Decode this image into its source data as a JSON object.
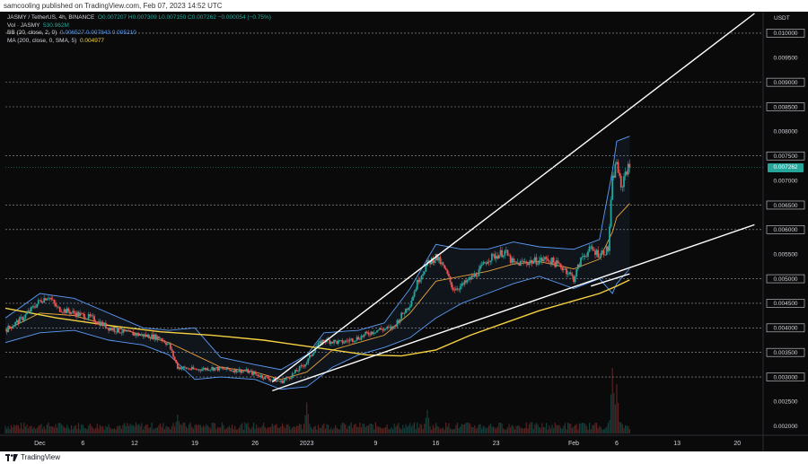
{
  "header": {
    "published": "samcooling published on TradingView.com, Feb 07, 2023 14:52 UTC"
  },
  "legend": {
    "symbol": "JASMY / TetherUS, 4h, BINANCE",
    "ohlc": "O0.007207 H0.007309 L0.007150 C0.007262 −0.000054 (−0.75%)",
    "vol_label": "Vol · JASMY",
    "vol_value": "530.962M",
    "bb_label": "BB (20, close, 2, 0)",
    "bb_values": "0.006527  0.007843  0.005210",
    "ma_label": "MA (200, close, 0, SMA, 5)",
    "ma_value": "0.004977"
  },
  "footer": {
    "brand": "TradingView"
  },
  "colors": {
    "up": "#26a69a",
    "down": "#ef5350",
    "bb": "#5b9cf6",
    "basis": "#e8a23c",
    "ma": "#f5d142",
    "trend": "#ffffff"
  },
  "chart_data": {
    "type": "candlestick",
    "currency": "USDT",
    "last_price": "0.007262",
    "ylim": [
      0.00185,
      0.0104
    ],
    "y_ticks": [
      "0.010000",
      "0.009500",
      "0.009000",
      "0.008500",
      "0.008000",
      "0.007500",
      "0.007000",
      "0.006500",
      "0.006000",
      "0.005500",
      "0.005000",
      "0.004500",
      "0.004000",
      "0.003500",
      "0.003000",
      "0.002500",
      "0.002000"
    ],
    "dashed_levels": [
      0.01,
      0.009,
      0.0085,
      0.0075,
      0.0065,
      0.006,
      0.005,
      0.0045,
      0.004,
      0.0035,
      0.003
    ],
    "x_ticks": [
      {
        "label": "Dec",
        "t": "2022-12-01"
      },
      {
        "label": "6",
        "t": "2022-12-06"
      },
      {
        "label": "12",
        "t": "2022-12-12"
      },
      {
        "label": "19",
        "t": "2022-12-19"
      },
      {
        "label": "26",
        "t": "2022-12-26"
      },
      {
        "label": "2023",
        "t": "2023-01-01"
      },
      {
        "label": "9",
        "t": "2023-01-09"
      },
      {
        "label": "16",
        "t": "2023-01-16"
      },
      {
        "label": "23",
        "t": "2023-01-23"
      },
      {
        "label": "Feb",
        "t": "2023-02-01"
      },
      {
        "label": "6",
        "t": "2023-02-06"
      },
      {
        "label": "13",
        "t": "2023-02-13"
      },
      {
        "label": "20",
        "t": "2023-02-20"
      }
    ],
    "xlim": [
      "2022-11-27",
      "2023-02-23"
    ],
    "price_path": [
      [
        "2022-11-27",
        0.00395
      ],
      [
        "2022-11-29",
        0.0042
      ],
      [
        "2022-12-01",
        0.00455
      ],
      [
        "2022-12-02",
        0.00465
      ],
      [
        "2022-12-03",
        0.0044
      ],
      [
        "2022-12-05",
        0.0043
      ],
      [
        "2022-12-07",
        0.0042
      ],
      [
        "2022-12-09",
        0.004
      ],
      [
        "2022-12-11",
        0.0039
      ],
      [
        "2022-12-13",
        0.00385
      ],
      [
        "2022-12-15",
        0.0038
      ],
      [
        "2022-12-16",
        0.00365
      ],
      [
        "2022-12-17",
        0.0032
      ],
      [
        "2022-12-19",
        0.00315
      ],
      [
        "2022-12-21",
        0.00318
      ],
      [
        "2022-12-23",
        0.00315
      ],
      [
        "2022-12-25",
        0.00312
      ],
      [
        "2022-12-27",
        0.003
      ],
      [
        "2022-12-29",
        0.0029
      ],
      [
        "2022-12-30",
        0.003
      ],
      [
        "2023-01-01",
        0.0033
      ],
      [
        "2023-01-02",
        0.0036
      ],
      [
        "2023-01-03",
        0.00375
      ],
      [
        "2023-01-05",
        0.0037
      ],
      [
        "2023-01-07",
        0.0038
      ],
      [
        "2023-01-09",
        0.00395
      ],
      [
        "2023-01-11",
        0.004
      ],
      [
        "2023-01-13",
        0.0045
      ],
      [
        "2023-01-14",
        0.005
      ],
      [
        "2023-01-15",
        0.0053
      ],
      [
        "2023-01-16",
        0.00545
      ],
      [
        "2023-01-17",
        0.0052
      ],
      [
        "2023-01-18",
        0.0048
      ],
      [
        "2023-01-19",
        0.00485
      ],
      [
        "2023-01-21",
        0.00515
      ],
      [
        "2023-01-22",
        0.0054
      ],
      [
        "2023-01-24",
        0.00555
      ],
      [
        "2023-01-25",
        0.0053
      ],
      [
        "2023-01-27",
        0.00535
      ],
      [
        "2023-01-29",
        0.0054
      ],
      [
        "2023-01-31",
        0.0052
      ],
      [
        "2023-02-01",
        0.005
      ],
      [
        "2023-02-02",
        0.00545
      ],
      [
        "2023-02-03",
        0.0056
      ],
      [
        "2023-02-04",
        0.0055
      ],
      [
        "2023-02-05",
        0.0056
      ],
      [
        "2023-02-05T12",
        0.007
      ],
      [
        "2023-02-06",
        0.0074
      ],
      [
        "2023-02-06T12",
        0.0068
      ],
      [
        "2023-02-07",
        0.0072
      ],
      [
        "2023-02-07T12",
        0.007262
      ]
    ],
    "bb_upper": [
      [
        "2022-11-27",
        0.0042
      ],
      [
        "2022-12-01",
        0.0047
      ],
      [
        "2022-12-05",
        0.0046
      ],
      [
        "2022-12-09",
        0.0043
      ],
      [
        "2022-12-13",
        0.004
      ],
      [
        "2022-12-16",
        0.00395
      ],
      [
        "2022-12-19",
        0.004
      ],
      [
        "2022-12-22",
        0.0034
      ],
      [
        "2022-12-26",
        0.00325
      ],
      [
        "2022-12-29",
        0.00315
      ],
      [
        "2023-01-01",
        0.00345
      ],
      [
        "2023-01-03",
        0.0039
      ],
      [
        "2023-01-07",
        0.00395
      ],
      [
        "2023-01-10",
        0.0041
      ],
      [
        "2023-01-13",
        0.0048
      ],
      [
        "2023-01-16",
        0.0057
      ],
      [
        "2023-01-19",
        0.0056
      ],
      [
        "2023-01-22",
        0.0056
      ],
      [
        "2023-01-25",
        0.00575
      ],
      [
        "2023-01-28",
        0.00565
      ],
      [
        "2023-02-01",
        0.0056
      ],
      [
        "2023-02-04",
        0.0058
      ],
      [
        "2023-02-05T12",
        0.0072
      ],
      [
        "2023-02-06",
        0.0078
      ],
      [
        "2023-02-07T12",
        0.0079
      ]
    ],
    "bb_lower": [
      [
        "2022-11-27",
        0.0037
      ],
      [
        "2022-12-01",
        0.0039
      ],
      [
        "2022-12-05",
        0.00395
      ],
      [
        "2022-12-09",
        0.00375
      ],
      [
        "2022-12-13",
        0.00365
      ],
      [
        "2022-12-16",
        0.00345
      ],
      [
        "2022-12-19",
        0.00295
      ],
      [
        "2022-12-22",
        0.003
      ],
      [
        "2022-12-26",
        0.00295
      ],
      [
        "2022-12-29",
        0.00275
      ],
      [
        "2023-01-01",
        0.0028
      ],
      [
        "2023-01-04",
        0.0032
      ],
      [
        "2023-01-07",
        0.00345
      ],
      [
        "2023-01-10",
        0.0036
      ],
      [
        "2023-01-13",
        0.0038
      ],
      [
        "2023-01-16",
        0.0042
      ],
      [
        "2023-01-19",
        0.0045
      ],
      [
        "2023-01-22",
        0.0047
      ],
      [
        "2023-01-25",
        0.0049
      ],
      [
        "2023-01-28",
        0.00505
      ],
      [
        "2023-02-01",
        0.0048
      ],
      [
        "2023-02-04",
        0.005
      ],
      [
        "2023-02-05T12",
        0.0047
      ],
      [
        "2023-02-06",
        0.0049
      ],
      [
        "2023-02-07T12",
        0.0052
      ]
    ],
    "bb_basis": [
      [
        "2022-11-27",
        0.00395
      ],
      [
        "2022-12-01",
        0.0043
      ],
      [
        "2022-12-05",
        0.00425
      ],
      [
        "2022-12-09",
        0.00405
      ],
      [
        "2022-12-13",
        0.00385
      ],
      [
        "2022-12-16",
        0.0037
      ],
      [
        "2022-12-19",
        0.00345
      ],
      [
        "2022-12-22",
        0.0032
      ],
      [
        "2022-12-26",
        0.0031
      ],
      [
        "2022-12-29",
        0.00295
      ],
      [
        "2023-01-01",
        0.0031
      ],
      [
        "2023-01-04",
        0.00355
      ],
      [
        "2023-01-07",
        0.0037
      ],
      [
        "2023-01-10",
        0.00385
      ],
      [
        "2023-01-13",
        0.0043
      ],
      [
        "2023-01-16",
        0.00495
      ],
      [
        "2023-01-19",
        0.00505
      ],
      [
        "2023-01-22",
        0.00515
      ],
      [
        "2023-01-25",
        0.0053
      ],
      [
        "2023-01-28",
        0.00535
      ],
      [
        "2023-02-01",
        0.0052
      ],
      [
        "2023-02-04",
        0.0054
      ],
      [
        "2023-02-05T12",
        0.00595
      ],
      [
        "2023-02-06",
        0.00625
      ],
      [
        "2023-02-07T12",
        0.00653
      ]
    ],
    "ma200": [
      [
        "2022-11-27",
        0.0044
      ],
      [
        "2022-12-03",
        0.0042
      ],
      [
        "2022-12-09",
        0.00405
      ],
      [
        "2022-12-15",
        0.00392
      ],
      [
        "2022-12-21",
        0.00385
      ],
      [
        "2022-12-27",
        0.00375
      ],
      [
        "2023-01-02",
        0.0036
      ],
      [
        "2023-01-08",
        0.00345
      ],
      [
        "2023-01-12",
        0.00343
      ],
      [
        "2023-01-16",
        0.00355
      ],
      [
        "2023-01-20",
        0.00385
      ],
      [
        "2023-01-24",
        0.0041
      ],
      [
        "2023-01-28",
        0.00435
      ],
      [
        "2023-02-01",
        0.00455
      ],
      [
        "2023-02-04",
        0.0047
      ],
      [
        "2023-02-06",
        0.00485
      ],
      [
        "2023-02-07T12",
        0.004977
      ]
    ],
    "trendlines": [
      {
        "from": [
          "2022-12-28",
          0.0029
        ],
        "to": [
          "2023-02-22",
          0.0104
        ]
      },
      {
        "from": [
          "2022-12-28",
          0.00272
        ],
        "to": [
          "2023-02-22",
          0.0061
        ]
      },
      {
        "from": [
          "2023-02-03",
          0.00485
        ],
        "to": [
          "2023-02-07T12",
          0.0051
        ]
      }
    ],
    "volume_note": "relative volume bars along bottom",
    "volume_spikes": [
      [
        "2023-02-05T12",
        1.0
      ],
      [
        "2023-02-06",
        0.75
      ],
      [
        "2023-01-01",
        0.45
      ],
      [
        "2023-01-15",
        0.35
      ],
      [
        "2022-12-17",
        0.3
      ]
    ]
  }
}
